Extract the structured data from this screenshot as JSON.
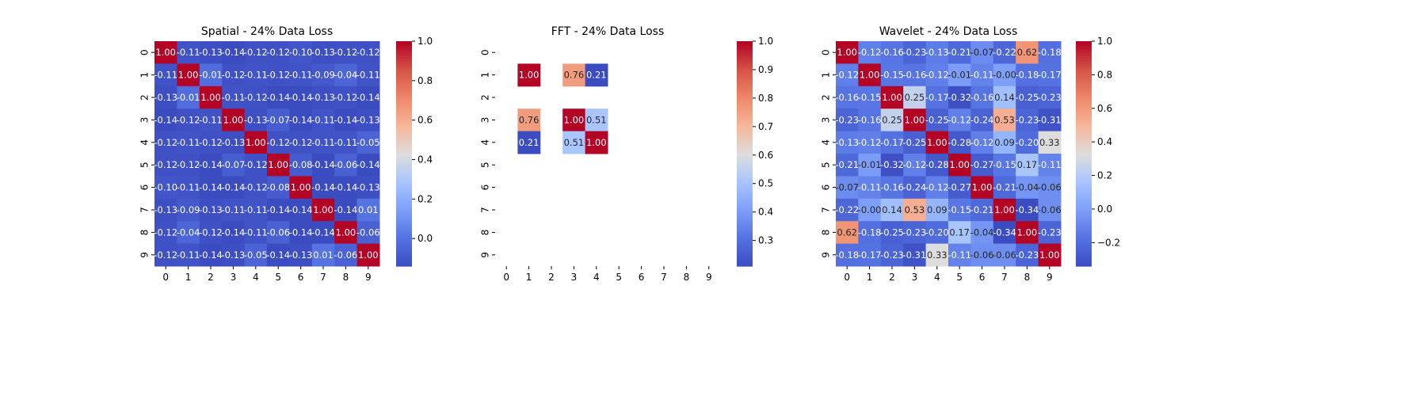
{
  "chart_data": [
    {
      "type": "heatmap",
      "title": "Spatial - 24% Data Loss",
      "x_tick_labels": [
        "0",
        "1",
        "2",
        "3",
        "4",
        "5",
        "6",
        "7",
        "8",
        "9"
      ],
      "y_tick_labels": [
        "0",
        "1",
        "2",
        "3",
        "4",
        "5",
        "6",
        "7",
        "8",
        "9"
      ],
      "matrix": [
        [
          "1.00",
          "-0.11",
          "-0.13",
          "-0.14",
          "-0.12",
          "-0.12",
          "-0.10",
          "-0.13",
          "-0.12",
          "-0.12"
        ],
        [
          "-0.11",
          "1.00",
          "-0.01",
          "-0.12",
          "-0.11",
          "-0.12",
          "-0.11",
          "-0.09",
          "-0.04",
          "-0.11"
        ],
        [
          "-0.13",
          "-0.01",
          "1.00",
          "-0.11",
          "-0.12",
          "-0.14",
          "-0.14",
          "-0.13",
          "-0.12",
          "-0.14"
        ],
        [
          "-0.14",
          "-0.12",
          "-0.11",
          "1.00",
          "-0.13",
          "-0.07",
          "-0.14",
          "-0.11",
          "-0.14",
          "-0.13"
        ],
        [
          "-0.12",
          "-0.11",
          "-0.12",
          "-0.13",
          "1.00",
          "-0.12",
          "-0.12",
          "-0.11",
          "-0.11",
          "-0.05"
        ],
        [
          "-0.12",
          "-0.12",
          "-0.14",
          "-0.07",
          "-0.12",
          "1.00",
          "-0.08",
          "-0.14",
          "-0.06",
          "-0.14"
        ],
        [
          "-0.10",
          "-0.11",
          "-0.14",
          "-0.14",
          "-0.12",
          "-0.08",
          "1.00",
          "-0.14",
          "-0.14",
          "-0.13"
        ],
        [
          "-0.13",
          "-0.09",
          "-0.13",
          "-0.11",
          "-0.11",
          "-0.14",
          "-0.14",
          "1.00",
          "-0.14",
          "0.01"
        ],
        [
          "-0.12",
          "-0.04",
          "-0.12",
          "-0.14",
          "-0.11",
          "-0.06",
          "-0.14",
          "-0.14",
          "1.00",
          "-0.06"
        ],
        [
          "-0.12",
          "-0.11",
          "-0.14",
          "-0.13",
          "-0.05",
          "-0.14",
          "-0.13",
          "0.01",
          "-0.06",
          "1.00"
        ]
      ],
      "vmin": -0.14,
      "vmax": 1.0,
      "colorbar_ticks": [
        "0.0",
        "0.2",
        "0.4",
        "0.6",
        "0.8",
        "1.0"
      ],
      "colormap": "coolwarm"
    },
    {
      "type": "heatmap",
      "title": "FFT - 24% Data Loss",
      "x_tick_labels": [
        "0",
        "1",
        "2",
        "3",
        "4",
        "5",
        "6",
        "7",
        "8",
        "9"
      ],
      "y_tick_labels": [
        "0",
        "1",
        "2",
        "3",
        "4",
        "5",
        "6",
        "7",
        "8",
        "9"
      ],
      "matrix": [
        [
          null,
          null,
          null,
          null,
          null,
          null,
          null,
          null,
          null,
          null
        ],
        [
          null,
          "1.00",
          null,
          "0.76",
          "0.21",
          null,
          null,
          null,
          null,
          null
        ],
        [
          null,
          null,
          null,
          null,
          null,
          null,
          null,
          null,
          null,
          null
        ],
        [
          null,
          "0.76",
          null,
          "1.00",
          "0.51",
          null,
          null,
          null,
          null,
          null
        ],
        [
          null,
          "0.21",
          null,
          "0.51",
          "1.00",
          null,
          null,
          null,
          null,
          null
        ],
        [
          null,
          null,
          null,
          null,
          null,
          null,
          null,
          null,
          null,
          null
        ],
        [
          null,
          null,
          null,
          null,
          null,
          null,
          null,
          null,
          null,
          null
        ],
        [
          null,
          null,
          null,
          null,
          null,
          null,
          null,
          null,
          null,
          null
        ],
        [
          null,
          null,
          null,
          null,
          null,
          null,
          null,
          null,
          null,
          null
        ],
        [
          null,
          null,
          null,
          null,
          null,
          null,
          null,
          null,
          null,
          null
        ]
      ],
      "vmin": 0.21,
      "vmax": 1.0,
      "colorbar_ticks": [
        "0.3",
        "0.4",
        "0.5",
        "0.6",
        "0.7",
        "0.8",
        "0.9",
        "1.0"
      ],
      "colormap": "coolwarm"
    },
    {
      "type": "heatmap",
      "title": "Wavelet - 24% Data Loss",
      "x_tick_labels": [
        "0",
        "1",
        "2",
        "3",
        "4",
        "5",
        "6",
        "7",
        "8",
        "9"
      ],
      "y_tick_labels": [
        "0",
        "1",
        "2",
        "3",
        "4",
        "5",
        "6",
        "7",
        "8",
        "9"
      ],
      "matrix": [
        [
          "1.00",
          "-0.12",
          "-0.16",
          "-0.23",
          "-0.13",
          "-0.21",
          "-0.07",
          "-0.22",
          "0.62",
          "-0.18"
        ],
        [
          "-0.12",
          "1.00",
          "-0.15",
          "-0.16",
          "-0.12",
          "-0.01",
          "-0.11",
          "-0.00",
          "-0.18",
          "-0.17"
        ],
        [
          "-0.16",
          "-0.15",
          "1.00",
          "0.25",
          "-0.17",
          "-0.32",
          "-0.16",
          "0.14",
          "-0.25",
          "-0.23"
        ],
        [
          "-0.23",
          "-0.16",
          "0.25",
          "1.00",
          "-0.25",
          "-0.12",
          "-0.24",
          "0.53",
          "-0.23",
          "-0.31"
        ],
        [
          "-0.13",
          "-0.12",
          "-0.17",
          "-0.25",
          "1.00",
          "-0.28",
          "-0.12",
          "0.09",
          "-0.20",
          "0.33"
        ],
        [
          "-0.21",
          "-0.01",
          "-0.32",
          "-0.12",
          "-0.28",
          "1.00",
          "-0.27",
          "-0.15",
          "0.17",
          "-0.11"
        ],
        [
          "-0.07",
          "-0.11",
          "-0.16",
          "-0.24",
          "-0.12",
          "-0.27",
          "1.00",
          "-0.21",
          "-0.04",
          "-0.06"
        ],
        [
          "-0.22",
          "-0.00",
          "0.14",
          "0.53",
          "0.09",
          "-0.15",
          "-0.21",
          "1.00",
          "-0.34",
          "-0.06"
        ],
        [
          "0.62",
          "-0.18",
          "-0.25",
          "-0.23",
          "-0.20",
          "0.17",
          "-0.04",
          "-0.34",
          "1.00",
          "-0.23"
        ],
        [
          "-0.18",
          "-0.17",
          "-0.23",
          "-0.31",
          "0.33",
          "-0.11",
          "-0.06",
          "-0.06",
          "-0.23",
          "1.00"
        ]
      ],
      "vmin": -0.34,
      "vmax": 1.0,
      "colorbar_ticks": [
        "−0.2",
        "0.0",
        "0.2",
        "0.4",
        "0.6",
        "0.8",
        "1.0"
      ],
      "colormap": "coolwarm"
    }
  ]
}
